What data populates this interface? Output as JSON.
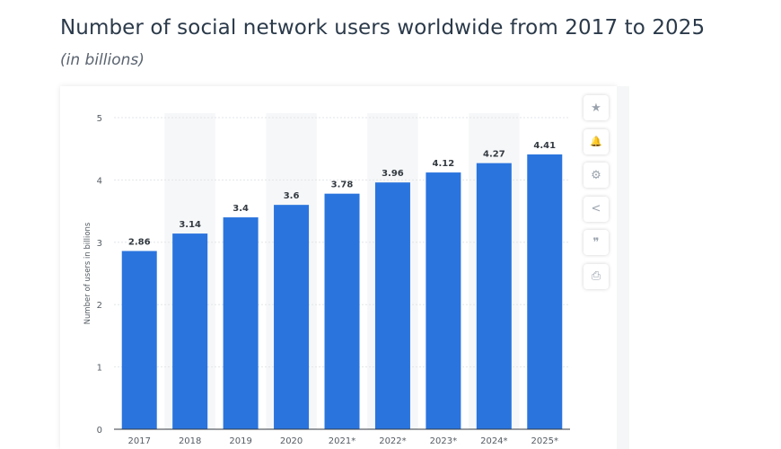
{
  "page": {
    "title": "Number of social network users worldwide from 2017 to 2025",
    "subtitle": "(in billions)"
  },
  "toolbar": {
    "items": [
      {
        "name": "favorite",
        "icon": "star-icon",
        "glyph": "★"
      },
      {
        "name": "alert",
        "icon": "bell-icon",
        "glyph": "🔔"
      },
      {
        "name": "settings",
        "icon": "gear-icon",
        "glyph": "⚙"
      },
      {
        "name": "share",
        "icon": "share-icon",
        "glyph": "<"
      },
      {
        "name": "cite",
        "icon": "quote-icon",
        "glyph": "❞"
      },
      {
        "name": "print",
        "icon": "printer-icon",
        "glyph": "⎙"
      }
    ]
  },
  "chart_data": {
    "type": "bar",
    "title": "Number of social network users worldwide from 2017 to 2025",
    "subtitle": "(in billions)",
    "xlabel": "",
    "ylabel": "Number of users in billions",
    "categories": [
      "2017",
      "2018",
      "2019",
      "2020",
      "2021*",
      "2022*",
      "2023*",
      "2024*",
      "2025*"
    ],
    "values": [
      2.86,
      3.14,
      3.4,
      3.6,
      3.78,
      3.96,
      4.12,
      4.27,
      4.41
    ],
    "value_labels": [
      "2.86",
      "3.14",
      "3.4",
      "3.6",
      "3.78",
      "3.96",
      "4.12",
      "4.27",
      "4.41"
    ],
    "ylim": [
      0,
      5
    ],
    "yticks": [
      "0",
      "1",
      "2",
      "3",
      "4",
      "5"
    ],
    "grid": true,
    "bar_color": "#2a74de",
    "band_color": "#f6f7f8",
    "grid_color": "#e2e5e8"
  }
}
